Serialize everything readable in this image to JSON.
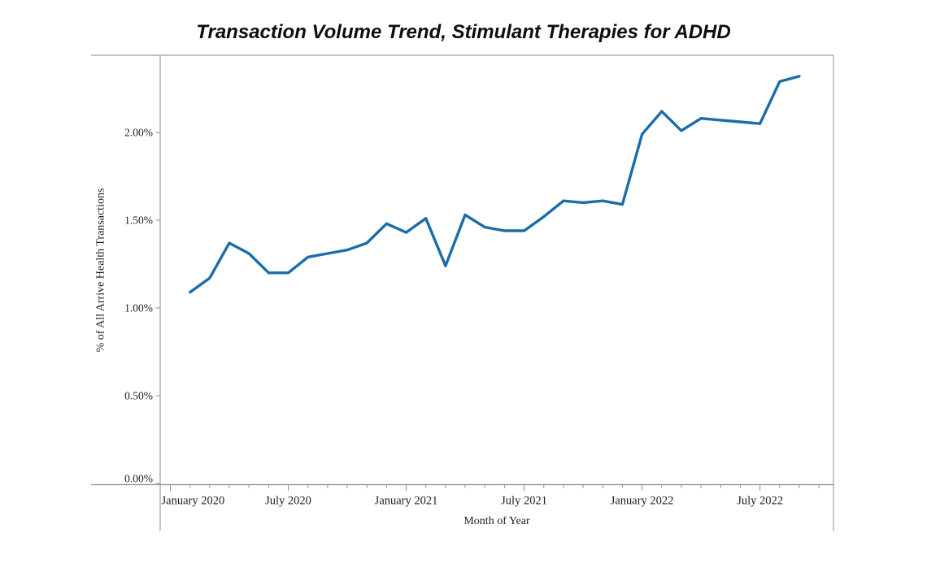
{
  "title": "Transaction Volume Trend, Stimulant Therapies for ADHD",
  "chart_data": {
    "type": "line",
    "title": "Transaction Volume Trend, Stimulant Therapies for ADHD",
    "xlabel": "Month of Year",
    "ylabel": "% of All Arrive Health Transactions",
    "legend": "none",
    "grid": "none",
    "ylim_pct": [
      0,
      2.44
    ],
    "y_ticks_pct": [
      0,
      0.5,
      1.0,
      1.5,
      2.0
    ],
    "y_tick_labels": [
      "0.00%",
      "0.50%",
      "1.00%",
      "1.50%",
      "2.00%"
    ],
    "x_tick_labels": [
      "January 2020",
      "July 2020",
      "January 2021",
      "July 2021",
      "January 2022",
      "July 2022"
    ],
    "x_major_tick_month_offsets": [
      0,
      6,
      12,
      18,
      24,
      30
    ],
    "x_minor_tick_every_month": true,
    "categories": [
      "February 2020",
      "March 2020",
      "April 2020",
      "May 2020",
      "June 2020",
      "July 2020",
      "August 2020",
      "September 2020",
      "October 2020",
      "November 2020",
      "December 2020",
      "January 2021",
      "February 2021",
      "March 2021",
      "April 2021",
      "May 2021",
      "June 2021",
      "July 2021",
      "August 2021",
      "September 2021",
      "October 2021",
      "November 2021",
      "December 2021",
      "January 2022",
      "February 2022",
      "March 2022",
      "April 2022",
      "May 2022",
      "June 2022",
      "July 2022",
      "August 2022",
      "September 2022"
    ],
    "series": [
      {
        "name": "% of All Arrive Health Transactions",
        "color": "#1b6caa",
        "values_pct": [
          1.09,
          1.17,
          1.37,
          1.31,
          1.2,
          1.2,
          1.29,
          1.31,
          1.33,
          1.37,
          1.48,
          1.43,
          1.51,
          1.24,
          1.53,
          1.46,
          1.44,
          1.44,
          1.52,
          1.61,
          1.6,
          1.61,
          1.59,
          1.99,
          2.12,
          2.01,
          2.08,
          2.07,
          2.06,
          2.05,
          2.29,
          2.32
        ]
      }
    ],
    "colors": {
      "line": "#1b6caa",
      "plot_border": "#adadad",
      "axis_rule": "#8d8d8d",
      "text": "#1c1c1c",
      "title_text": "#0d0d0d",
      "background": "#ffffff"
    }
  }
}
